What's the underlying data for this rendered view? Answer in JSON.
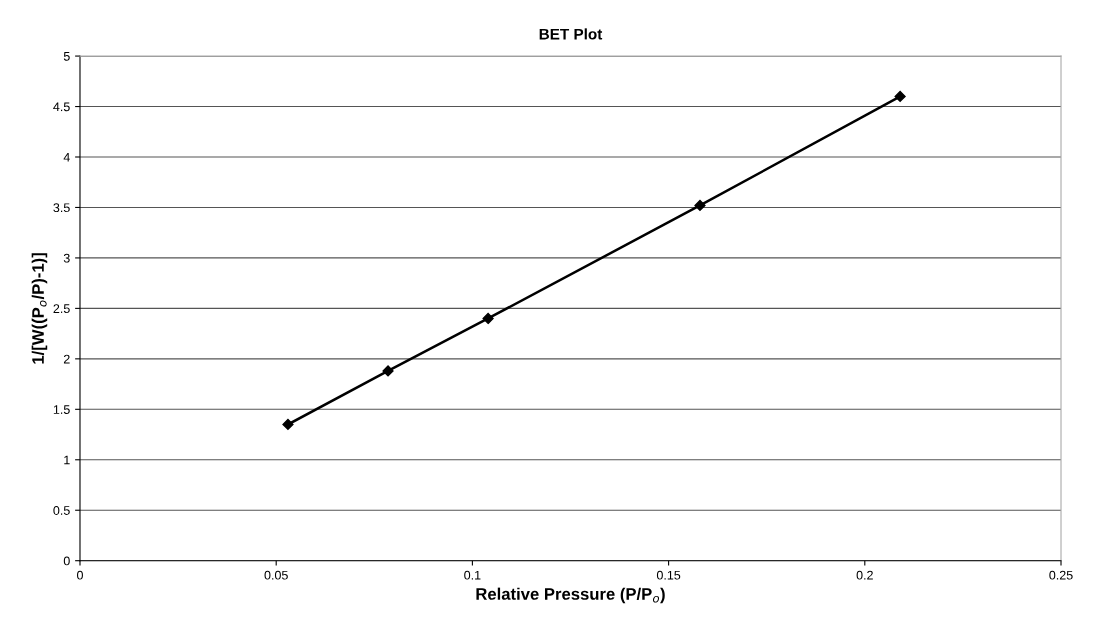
{
  "chart_data": {
    "type": "line",
    "title": "BET Plot",
    "xlabel": "Relative Pressure (P/P$_{o}$)",
    "ylabel": "1/[W((P$_{o}$/P)-1)]",
    "x": [
      0.053,
      0.0785,
      0.104,
      0.158,
      0.209
    ],
    "series": [
      {
        "color": "#000000",
        "values": [
          1.35,
          1.88,
          2.4,
          3.52,
          4.6
        ]
      }
    ],
    "xlim": [
      0,
      0.25
    ],
    "xticks": [
      0,
      0.05,
      0.1,
      0.15,
      0.2,
      0.25
    ],
    "ylim": [
      0,
      5
    ],
    "yticks": [
      0,
      0.5,
      1,
      1.5,
      2,
      2.5,
      3,
      3.5,
      4,
      4.5,
      5
    ],
    "grid": "y",
    "marker": "diamond",
    "line_style": "solid"
  }
}
